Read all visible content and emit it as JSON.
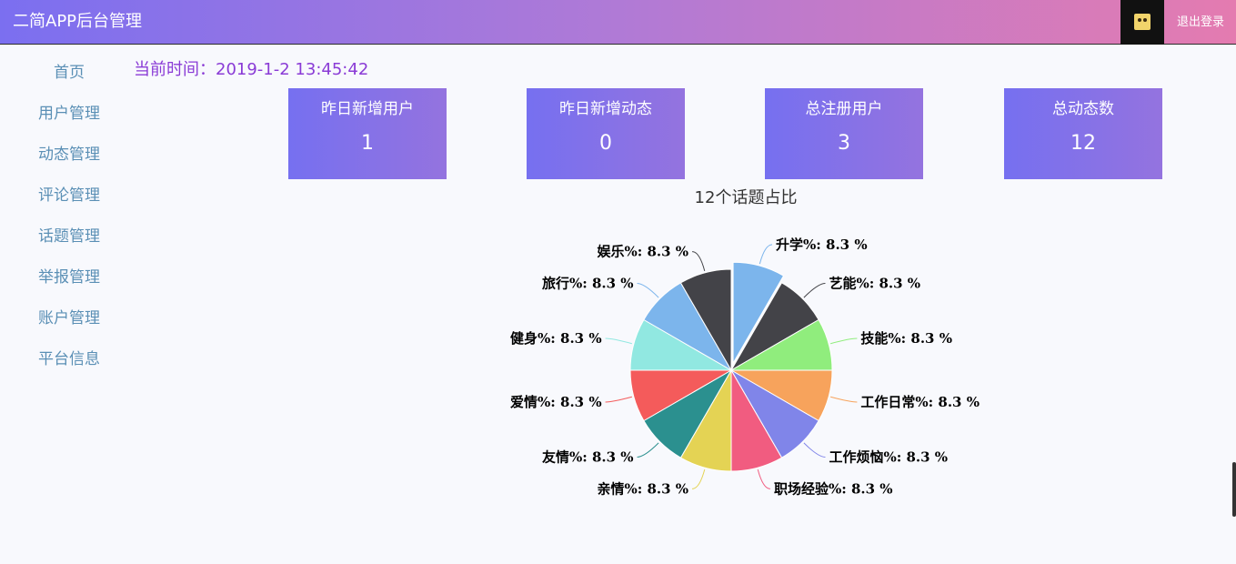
{
  "header": {
    "title": "二简APP后台管理",
    "logout_label": "退出登录"
  },
  "sidebar": {
    "items": [
      {
        "label": "首页"
      },
      {
        "label": "用户管理"
      },
      {
        "label": "动态管理"
      },
      {
        "label": "评论管理"
      },
      {
        "label": "话题管理"
      },
      {
        "label": "举报管理"
      },
      {
        "label": "账户管理"
      },
      {
        "label": "平台信息"
      }
    ]
  },
  "time": {
    "text": "当前时间：2019-1-2 13:45:42"
  },
  "stats": [
    {
      "label": "昨日新增用户",
      "value": "1"
    },
    {
      "label": "昨日新增动态",
      "value": "0"
    },
    {
      "label": "总注册用户",
      "value": "3"
    },
    {
      "label": "总动态数",
      "value": "12"
    }
  ],
  "chart_data": {
    "type": "pie",
    "title": "12个话题占比",
    "slices": [
      {
        "name": "升学",
        "percent": 8.3,
        "color": "#7cb5ec",
        "label": "升学%: 8.3 %"
      },
      {
        "name": "艺能",
        "percent": 8.3,
        "color": "#434348",
        "label": "艺能%: 8.3 %"
      },
      {
        "name": "技能",
        "percent": 8.3,
        "color": "#90ed7d",
        "label": "技能%: 8.3 %"
      },
      {
        "name": "工作日常",
        "percent": 8.3,
        "color": "#f7a35c",
        "label": "工作日常%: 8.3 %"
      },
      {
        "name": "工作烦恼",
        "percent": 8.3,
        "color": "#8085e9",
        "label": "工作烦恼%: 8.3 %"
      },
      {
        "name": "职场经验",
        "percent": 8.3,
        "color": "#f15c80",
        "label": "职场经验%: 8.3 %"
      },
      {
        "name": "亲情",
        "percent": 8.3,
        "color": "#e4d354",
        "label": "亲情%: 8.3 %"
      },
      {
        "name": "友情",
        "percent": 8.3,
        "color": "#2b908f",
        "label": "友情%: 8.3 %"
      },
      {
        "name": "爱情",
        "percent": 8.3,
        "color": "#f45b5b",
        "label": "爱情%: 8.3 %"
      },
      {
        "name": "健身",
        "percent": 8.3,
        "color": "#91e8e1",
        "label": "健身%: 8.3 %"
      },
      {
        "name": "旅行",
        "percent": 8.3,
        "color": "#7cb5ec",
        "label": "旅行%: 8.3 %"
      },
      {
        "name": "娱乐",
        "percent": 8.3,
        "color": "#434348",
        "label": "娱乐%: 8.3 %"
      }
    ],
    "selected_slice": "升学"
  }
}
